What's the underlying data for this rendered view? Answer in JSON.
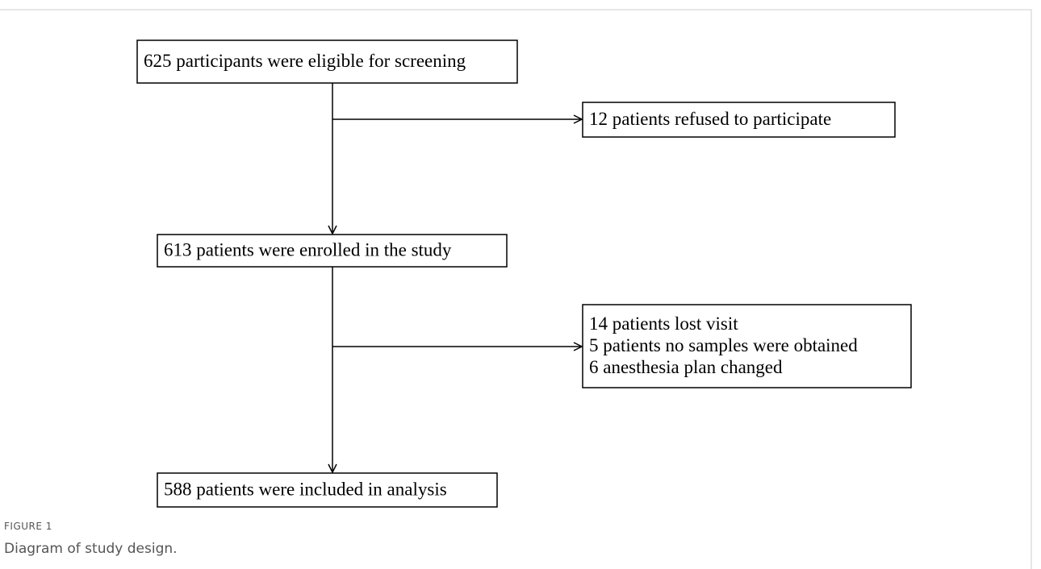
{
  "nodes": [
    {
      "lines": [
        "625 participants were eligible for screening"
      ]
    },
    {
      "lines": [
        "12 patients refused to participate"
      ]
    },
    {
      "lines": [
        "613 patients were enrolled in the study"
      ]
    },
    {
      "lines": [
        "14 patients lost visit",
        "5 patients no samples were obtained",
        "6 anesthesia plan changed"
      ]
    },
    {
      "lines": [
        "588 patients were included in analysis"
      ]
    }
  ],
  "caption": {
    "label": "FIGURE 1",
    "text": "Diagram of study design."
  }
}
